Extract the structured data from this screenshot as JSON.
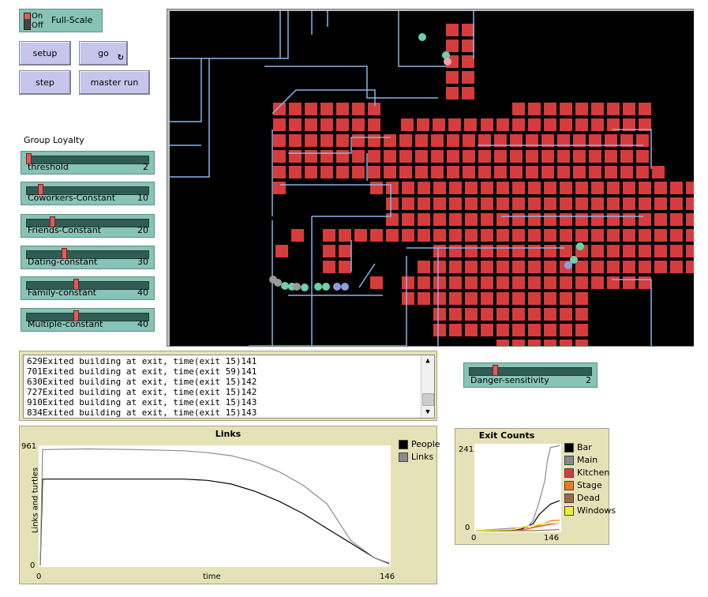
{
  "switch": {
    "on_label": "On",
    "off_label": "Off",
    "name": "Full-Scale"
  },
  "buttons": {
    "setup": "setup",
    "go": "go",
    "step": "step",
    "master_run": "master run"
  },
  "group_heading": "Group Loyalty",
  "sliders": [
    {
      "label": "threshold",
      "value": "2",
      "fraction": 0.0
    },
    {
      "label": "Coworkers-Constant",
      "value": "10",
      "fraction": 0.1
    },
    {
      "label": "Friends-Constant",
      "value": "20",
      "fraction": 0.2
    },
    {
      "label": "Dating-constant",
      "value": "30",
      "fraction": 0.3
    },
    {
      "label": "Family-constant",
      "value": "40",
      "fraction": 0.4
    },
    {
      "label": "Multiple-constant",
      "value": "40",
      "fraction": 0.4
    }
  ],
  "danger_slider": {
    "label": "Danger-sensitivity",
    "value": "2",
    "fraction": 0.2
  },
  "log_lines": [
    "629Exited building at exit, time(exit 15)141",
    "701Exited building at exit, time(exit 59)141",
    "630Exited building at exit, time(exit 15)142",
    "727Exited building at exit, time(exit 15)142",
    "910Exited building at exit, time(exit 15)143",
    "834Exited building at exit, time(exit 15)143"
  ],
  "colors": {
    "wall": "#8ab4e8",
    "fire": "#d73c3c",
    "bg": "#000000",
    "plot_bg": "#e6e2b8"
  },
  "links_plot": {
    "title": "Links",
    "ylabel": "Links and turtles",
    "xlabel": "time",
    "ymax_label": "961",
    "ymin_label": "0",
    "xmin_label": "0",
    "xmax_label": "146",
    "legend": [
      {
        "name": "People",
        "color": "#000000"
      },
      {
        "name": "Links",
        "color": "#8a8a8a"
      }
    ]
  },
  "exit_plot": {
    "title": "Exit Counts",
    "ymax_label": "241",
    "ymin_label": "0",
    "xmin_label": "0",
    "xmax_label": "146",
    "legend": [
      {
        "name": "Bar",
        "color": "#000000"
      },
      {
        "name": "Main",
        "color": "#8a8a8a"
      },
      {
        "name": "Kitchen",
        "color": "#d73c3c"
      },
      {
        "name": "Stage",
        "color": "#f07a1a"
      },
      {
        "name": "Dead",
        "color": "#9c6a4a"
      },
      {
        "name": "Windows",
        "color": "#f0f02a"
      }
    ]
  },
  "chart_data": [
    {
      "type": "line",
      "title": "Links",
      "xlabel": "time",
      "ylabel": "Links and turtles",
      "xlim": [
        0,
        146
      ],
      "ylim": [
        0,
        961
      ],
      "series": [
        {
          "name": "People",
          "x": [
            0,
            1,
            20,
            40,
            60,
            70,
            80,
            90,
            100,
            110,
            120,
            130,
            140,
            146
          ],
          "y": [
            0,
            700,
            700,
            700,
            700,
            690,
            660,
            600,
            520,
            420,
            300,
            180,
            60,
            15
          ]
        },
        {
          "name": "Links",
          "x": [
            0,
            1,
            20,
            40,
            60,
            70,
            80,
            90,
            100,
            110,
            120,
            125,
            130,
            140,
            146
          ],
          "y": [
            0,
            940,
            945,
            940,
            930,
            915,
            890,
            840,
            760,
            650,
            500,
            350,
            200,
            60,
            20
          ]
        }
      ]
    },
    {
      "type": "line",
      "title": "Exit Counts",
      "xlim": [
        0,
        146
      ],
      "ylim": [
        0,
        241
      ],
      "series": [
        {
          "name": "Bar",
          "x": [
            0,
            60,
            80,
            100,
            110,
            120,
            130,
            146
          ],
          "y": [
            0,
            0,
            5,
            20,
            45,
            60,
            75,
            85
          ]
        },
        {
          "name": "Main",
          "x": [
            0,
            90,
            100,
            110,
            120,
            125,
            130,
            146
          ],
          "y": [
            0,
            10,
            30,
            80,
            140,
            200,
            235,
            240
          ]
        },
        {
          "name": "Kitchen",
          "x": [
            0,
            70,
            90,
            110,
            130,
            146
          ],
          "y": [
            0,
            0,
            5,
            12,
            18,
            22
          ]
        },
        {
          "name": "Stage",
          "x": [
            0,
            80,
            100,
            120,
            130,
            146
          ],
          "y": [
            0,
            2,
            10,
            20,
            28,
            30
          ]
        },
        {
          "name": "Dead",
          "x": [
            0,
            100,
            146
          ],
          "y": [
            0,
            0,
            3
          ]
        },
        {
          "name": "Windows",
          "x": [
            0,
            60,
            80,
            100,
            120,
            146
          ],
          "y": [
            0,
            3,
            10,
            15,
            20,
            22
          ]
        }
      ]
    }
  ]
}
